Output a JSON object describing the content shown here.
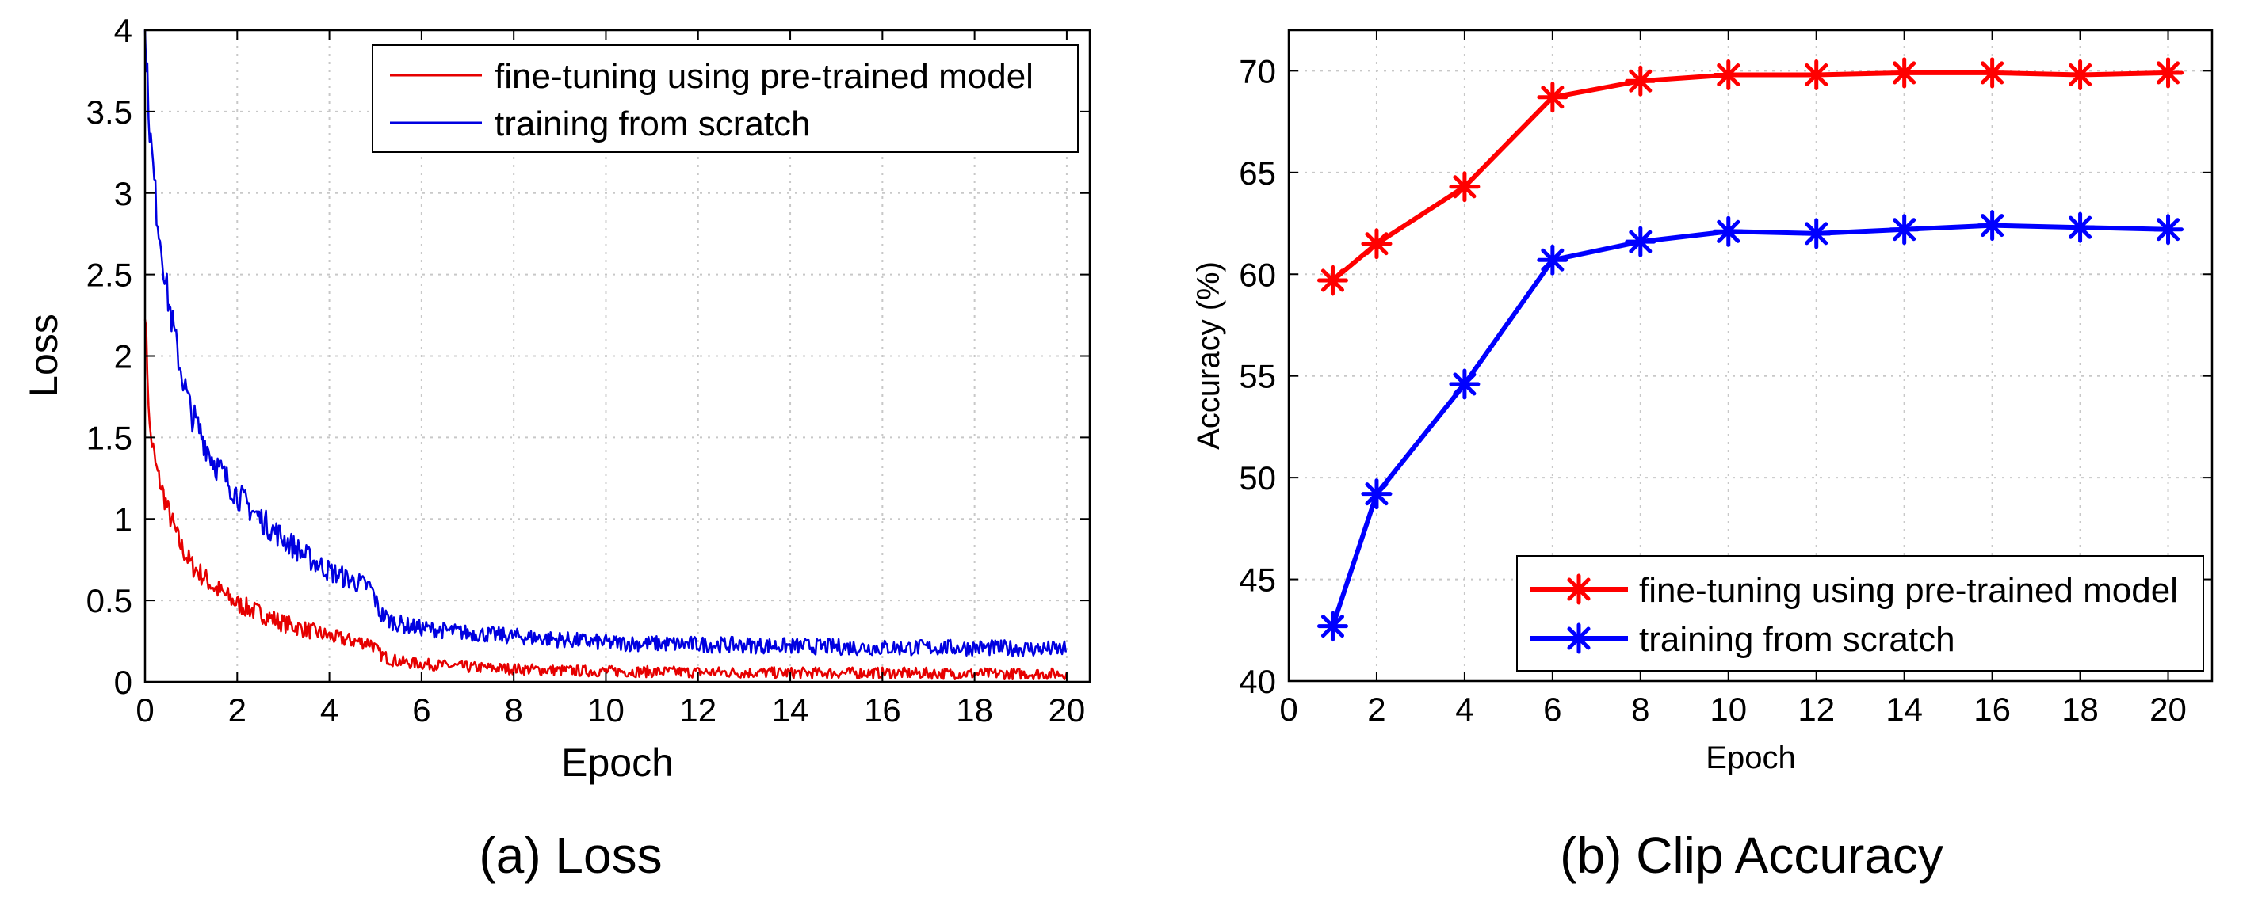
{
  "chart_data": [
    {
      "type": "line",
      "panel": "a",
      "title": "",
      "caption": "(a) Loss",
      "xlabel": "Epoch",
      "ylabel": "Loss",
      "xlim": [
        0,
        20.5
      ],
      "ylim": [
        0,
        4
      ],
      "xticks": [
        0,
        2,
        4,
        6,
        8,
        10,
        12,
        14,
        16,
        18,
        20
      ],
      "yticks": [
        0,
        0.5,
        1,
        1.5,
        2,
        2.5,
        3,
        3.5,
        4
      ],
      "ytick_labels": [
        "0",
        "0.5",
        "1",
        "1.5",
        "2",
        "2.5",
        "3",
        "3.5",
        "4"
      ],
      "grid": true,
      "legend_position": "top-right",
      "series": [
        {
          "name": "fine-tuning using pre-trained model",
          "color": "#e60000",
          "x": [
            0,
            0.1,
            0.25,
            0.5,
            0.75,
            1,
            1.5,
            2,
            2.5,
            3,
            3.5,
            4,
            4.5,
            4.9,
            5.1,
            5.3,
            5.6,
            6,
            7,
            8,
            9,
            10,
            12,
            14,
            16,
            18,
            20
          ],
          "y": [
            2.3,
            1.55,
            1.3,
            1.05,
            0.85,
            0.72,
            0.58,
            0.48,
            0.42,
            0.36,
            0.32,
            0.28,
            0.25,
            0.24,
            0.17,
            0.14,
            0.12,
            0.11,
            0.09,
            0.08,
            0.07,
            0.065,
            0.06,
            0.055,
            0.055,
            0.05,
            0.05
          ],
          "noise_amplitude": 0.035
        },
        {
          "name": "training from scratch",
          "color": "#0000e0",
          "x": [
            0,
            0.1,
            0.25,
            0.5,
            0.75,
            1,
            1.5,
            2,
            2.5,
            3,
            3.5,
            4,
            4.5,
            4.9,
            5.1,
            5.3,
            5.6,
            6,
            7,
            8,
            9,
            10,
            12,
            14,
            16,
            18,
            20
          ],
          "y": [
            4.0,
            3.4,
            2.9,
            2.35,
            1.95,
            1.65,
            1.35,
            1.15,
            1.0,
            0.88,
            0.77,
            0.68,
            0.62,
            0.58,
            0.42,
            0.38,
            0.35,
            0.33,
            0.3,
            0.28,
            0.26,
            0.24,
            0.23,
            0.22,
            0.21,
            0.21,
            0.2
          ],
          "noise_amplitude": 0.05
        }
      ]
    },
    {
      "type": "line",
      "panel": "b",
      "title": "",
      "caption": "(b) Clip Accuracy",
      "xlabel": "Epoch",
      "ylabel": "Accuracy (%)",
      "xlim": [
        0,
        21
      ],
      "ylim": [
        40,
        72
      ],
      "xticks": [
        0,
        2,
        4,
        6,
        8,
        10,
        12,
        14,
        16,
        18,
        20
      ],
      "yticks": [
        40,
        45,
        50,
        55,
        60,
        65,
        70
      ],
      "ytick_labels": [
        "40",
        "45",
        "50",
        "55",
        "60",
        "65",
        "70"
      ],
      "grid": true,
      "legend_position": "bottom-right",
      "series": [
        {
          "name": "fine-tuning using pre-trained model",
          "color": "#ff0000",
          "x": [
            1,
            2,
            4,
            6,
            8,
            10,
            12,
            14,
            16,
            18,
            20
          ],
          "y": [
            59.7,
            61.5,
            64.3,
            68.7,
            69.5,
            69.8,
            69.8,
            69.9,
            69.9,
            69.8,
            69.9
          ]
        },
        {
          "name": "training from scratch",
          "color": "#0000ff",
          "x": [
            1,
            2,
            4,
            6,
            8,
            10,
            12,
            14,
            16,
            18,
            20
          ],
          "y": [
            42.7,
            49.2,
            54.6,
            60.7,
            61.6,
            62.1,
            62.0,
            62.2,
            62.4,
            62.3,
            62.2
          ]
        }
      ]
    }
  ]
}
